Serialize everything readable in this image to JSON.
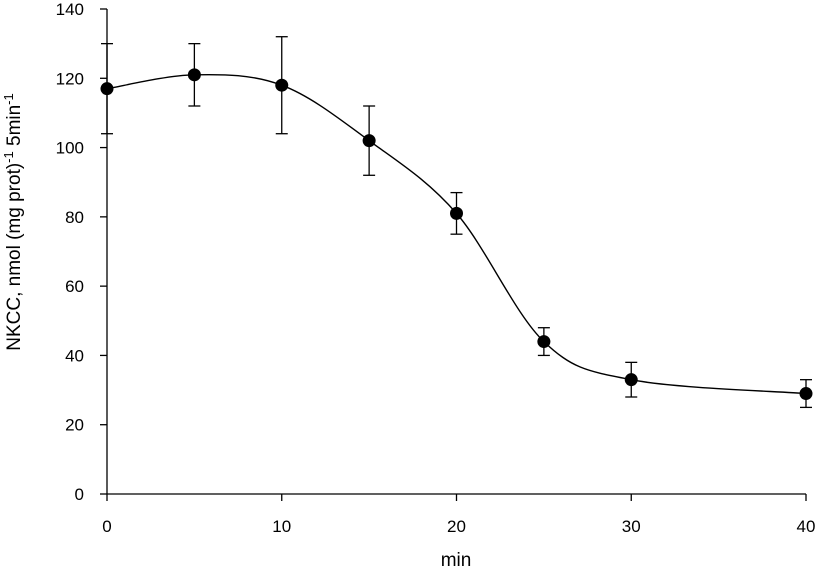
{
  "chart_data": {
    "type": "scatter",
    "xlabel": "min",
    "ylabel": {
      "text_1": "NKCC, nmol (mg prot)",
      "sup_1": "-1",
      "text_2": " 5min",
      "sup_2": "-1"
    },
    "xlim": [
      0,
      40
    ],
    "ylim": [
      0,
      140
    ],
    "x_ticks": [
      0,
      10,
      20,
      30,
      40
    ],
    "y_ticks": [
      0,
      20,
      40,
      60,
      80,
      100,
      120,
      140
    ],
    "grid": false,
    "series": [
      {
        "x": [
          0,
          5,
          10,
          15,
          20,
          25,
          30,
          40
        ],
        "y": [
          117,
          121,
          118,
          102,
          81,
          44,
          33,
          29
        ],
        "error": [
          13,
          9,
          14,
          10,
          6,
          4,
          5,
          4
        ],
        "marker": "circle",
        "line": "smooth",
        "color": "#000000"
      }
    ]
  }
}
